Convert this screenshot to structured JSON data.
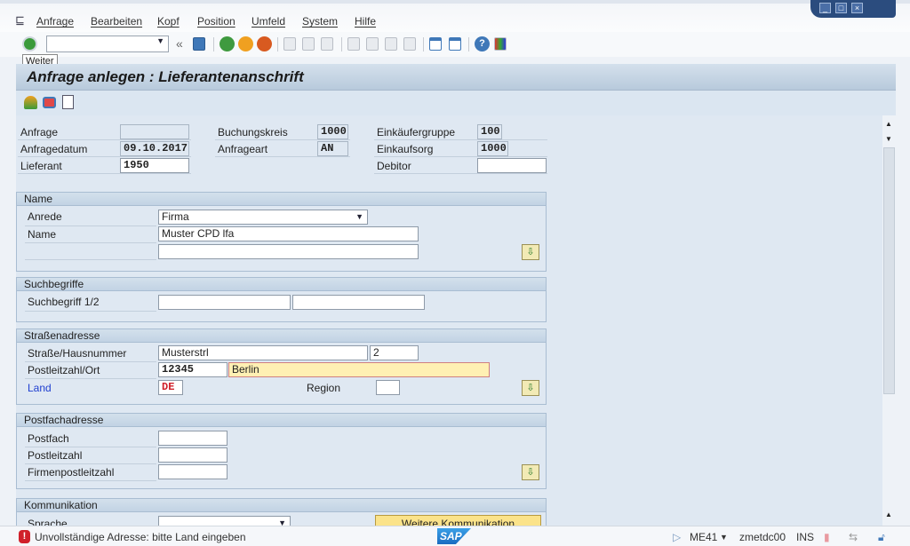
{
  "menu": {
    "items": [
      "Anfrage",
      "Bearbeiten",
      "Kopf",
      "Position",
      "Umfeld",
      "System",
      "Hilfe"
    ]
  },
  "toolbar": {
    "command_value": "",
    "tooltip": "Weiter",
    "icons": [
      "enter-icon",
      "save-icon",
      "back-icon",
      "exit-icon",
      "cancel-icon",
      "print-icon",
      "find-icon",
      "find-next-icon",
      "first-page-icon",
      "prev-page-icon",
      "next-page-icon",
      "last-page-icon",
      "new-session-icon",
      "shortcut-icon",
      "help-icon",
      "customize-layout-icon"
    ]
  },
  "title": "Anfrage anlegen : Lieferantenanschrift",
  "header": {
    "anfrage_label": "Anfrage",
    "anfrage_value": "",
    "anfragedatum_label": "Anfragedatum",
    "anfragedatum_value": "09.10.2017",
    "lieferant_label": "Lieferant",
    "lieferant_value": "1950",
    "buchungskreis_label": "Buchungskreis",
    "buchungskreis_value": "1000",
    "anfrageart_label": "Anfrageart",
    "anfrageart_value": "AN",
    "einkaeufergruppe_label": "Einkäufergruppe",
    "einkaeufergruppe_value": "100",
    "einkaufsorg_label": "Einkaufsorg",
    "einkaufsorg_value": "1000",
    "debitor_label": "Debitor",
    "debitor_value": ""
  },
  "name_group": {
    "title": "Name",
    "anrede_label": "Anrede",
    "anrede_value": "Firma",
    "name_label": "Name",
    "name_value": "Muster CPD lfa",
    "name2_value": ""
  },
  "such_group": {
    "title": "Suchbegriffe",
    "label": "Suchbegriff 1/2",
    "value1": "",
    "value2": ""
  },
  "strasse_group": {
    "title": "Straßenadresse",
    "strasse_label": "Straße/Hausnummer",
    "strasse_value": "Musterstrl",
    "hausnr_value": "2",
    "plz_label": "Postleitzahl/Ort",
    "plz_value": "12345",
    "ort_value": "Berlin",
    "land_label": "Land",
    "land_value": "DE",
    "region_label": "Region",
    "region_value": ""
  },
  "postfach_group": {
    "title": "Postfachadresse",
    "postfach_label": "Postfach",
    "postfach_value": "",
    "plz_label": "Postleitzahl",
    "plz_value": "",
    "firmen_label": "Firmenpostleitzahl",
    "firmen_value": ""
  },
  "komm_group": {
    "title": "Kommunikation",
    "sprache_label": "Sprache",
    "sprache_value": "",
    "button": "Weitere Kommunikation"
  },
  "statusbar": {
    "message": "Unvollständige Adresse: bitte Land eingeben",
    "logo": "SAP",
    "transaction": "ME41",
    "server": "zmetdc00",
    "mode": "INS"
  },
  "colors": {
    "accent": "#2b4c7e",
    "error": "#d0202a",
    "highlight_field": "#fff0b3",
    "link_label": "#1f3fd0"
  }
}
